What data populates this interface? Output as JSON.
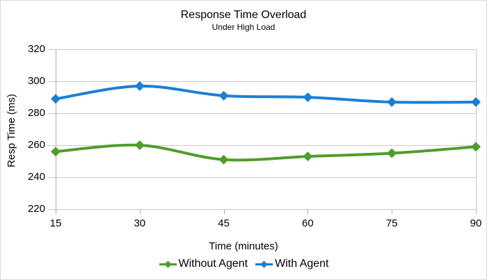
{
  "chart_data": {
    "type": "line",
    "title": "Response Time Overload",
    "subtitle": "Under High Load",
    "xlabel": "Time (minutes)",
    "ylabel": "Resp Time (ms)",
    "categories": [
      15,
      30,
      45,
      60,
      75,
      90
    ],
    "series": [
      {
        "name": "Without Agent",
        "color": "#4f9d2c",
        "values": [
          256,
          260,
          251,
          253,
          255,
          259
        ]
      },
      {
        "name": "With Agent",
        "color": "#1b7fd4",
        "values": [
          289,
          297,
          291,
          290,
          287,
          287
        ]
      }
    ],
    "ylim": [
      220,
      320
    ],
    "yticks": [
      320,
      300,
      280,
      260,
      240,
      220
    ],
    "grid": "horizontal",
    "legend_position": "bottom",
    "line_style": "smooth",
    "marker": "diamond",
    "grid_color": "#c9c9c9",
    "axis_color": "#aeaeae",
    "text_color": "#000000",
    "background": "#ffffff",
    "border_color": "#d9d9d9"
  }
}
